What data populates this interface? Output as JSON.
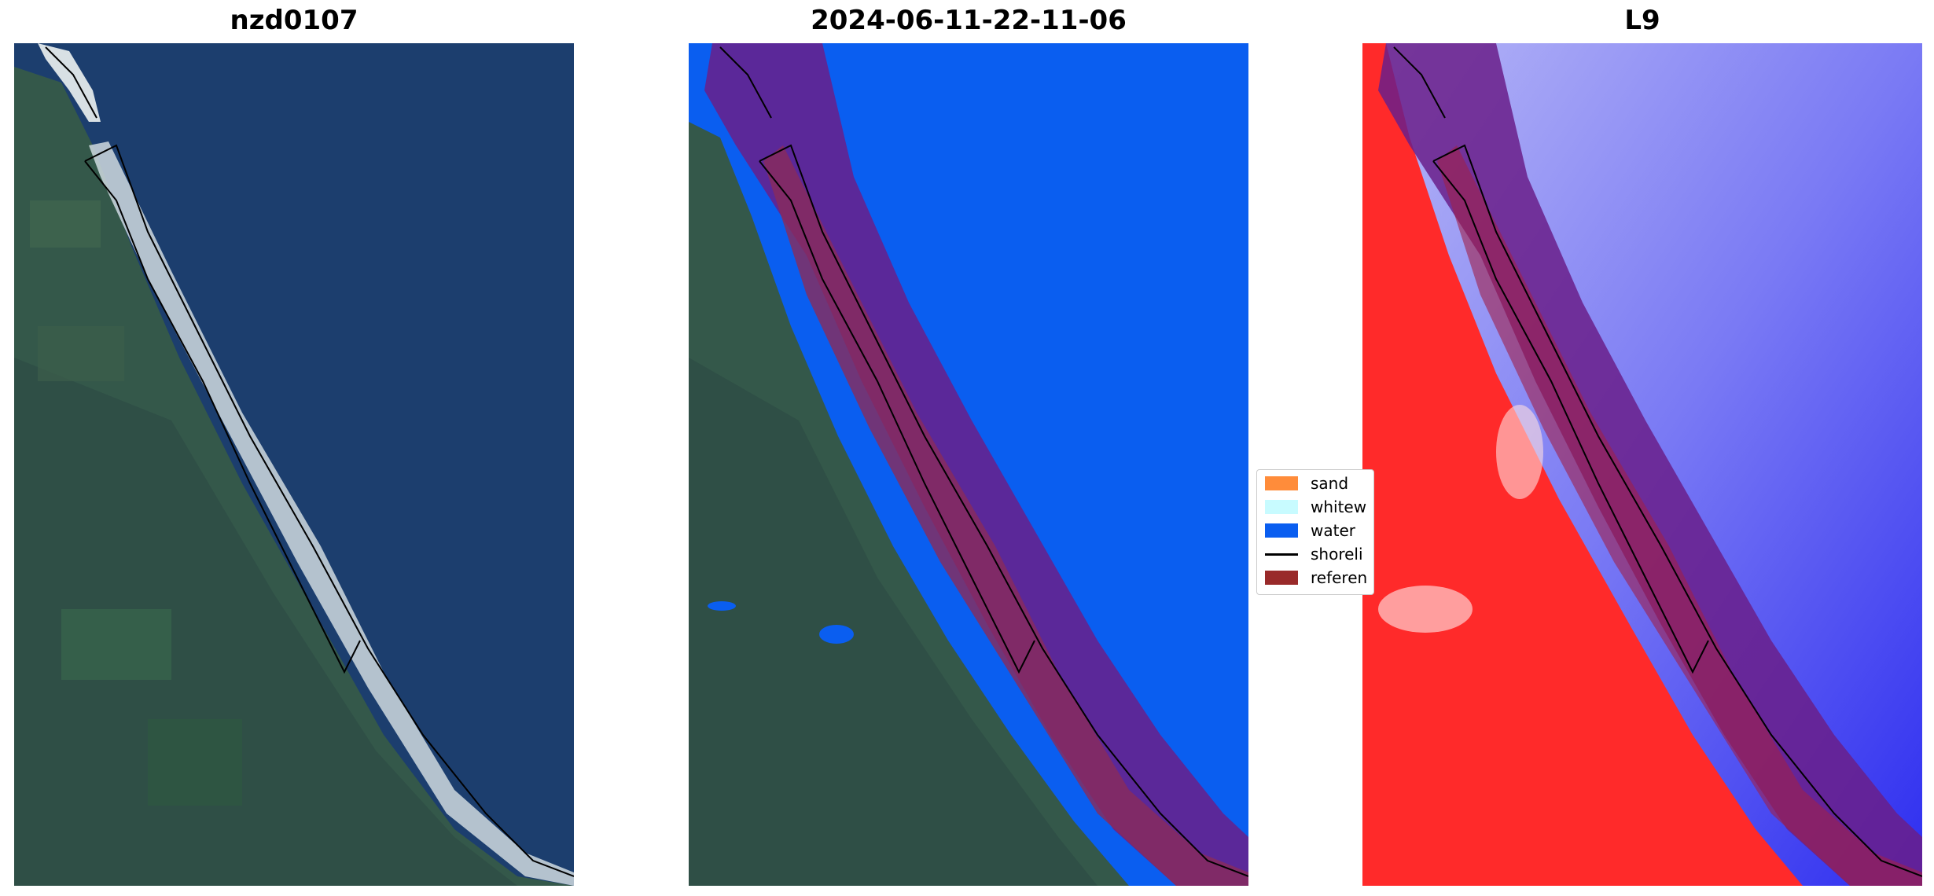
{
  "panels": [
    {
      "title": "nzd0107"
    },
    {
      "title": "2024-06-11-22-11-06"
    },
    {
      "title": "L9"
    }
  ],
  "legend": {
    "items": [
      {
        "label": "sand",
        "color": "#ff8c3a"
      },
      {
        "label": "whitew",
        "color": "#c8fbff"
      },
      {
        "label": "water",
        "color": "#0a5ef0"
      },
      {
        "label": "shoreli",
        "color": "#000000"
      },
      {
        "label": "referen",
        "color": "#992a2a"
      }
    ]
  },
  "colors": {
    "ocean": "#1b3c6b",
    "land": "#3a5a4a",
    "beach": "#d9e1e6",
    "water_class": "#0a5ef0",
    "buffer": "#6a1f8a",
    "reference": "#8a2a5a",
    "index_land": "#ff2a2a",
    "index_water": "#3a3af0"
  }
}
